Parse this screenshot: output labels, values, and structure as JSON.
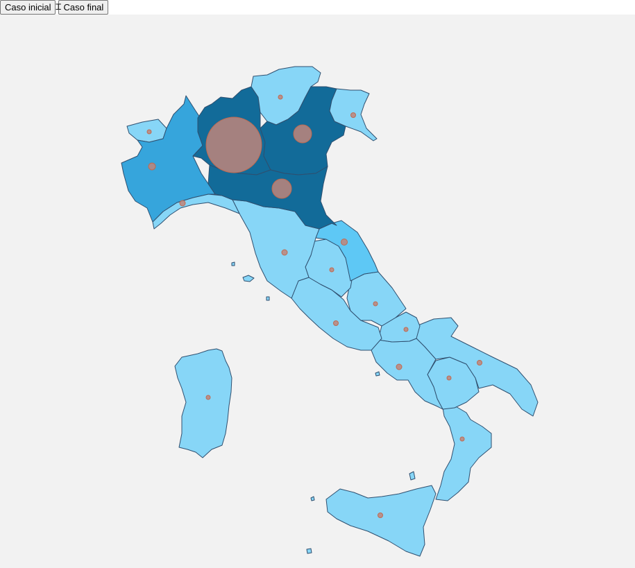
{
  "toolbar": {
    "btn_initial": "Caso inicial",
    "btn_final": "Caso final"
  },
  "colors": {
    "background": "#f2f2f2",
    "level_1": "#87d6f7",
    "level_2": "#5ec8f5",
    "level_3": "#36a5dc",
    "level_4": "#126b99",
    "border": "#2f4f6f",
    "bubble_fill": "#c0857a",
    "bubble_stroke": "#c06a50"
  },
  "icons": {
    "cursor": "text-cursor-icon"
  }
}
